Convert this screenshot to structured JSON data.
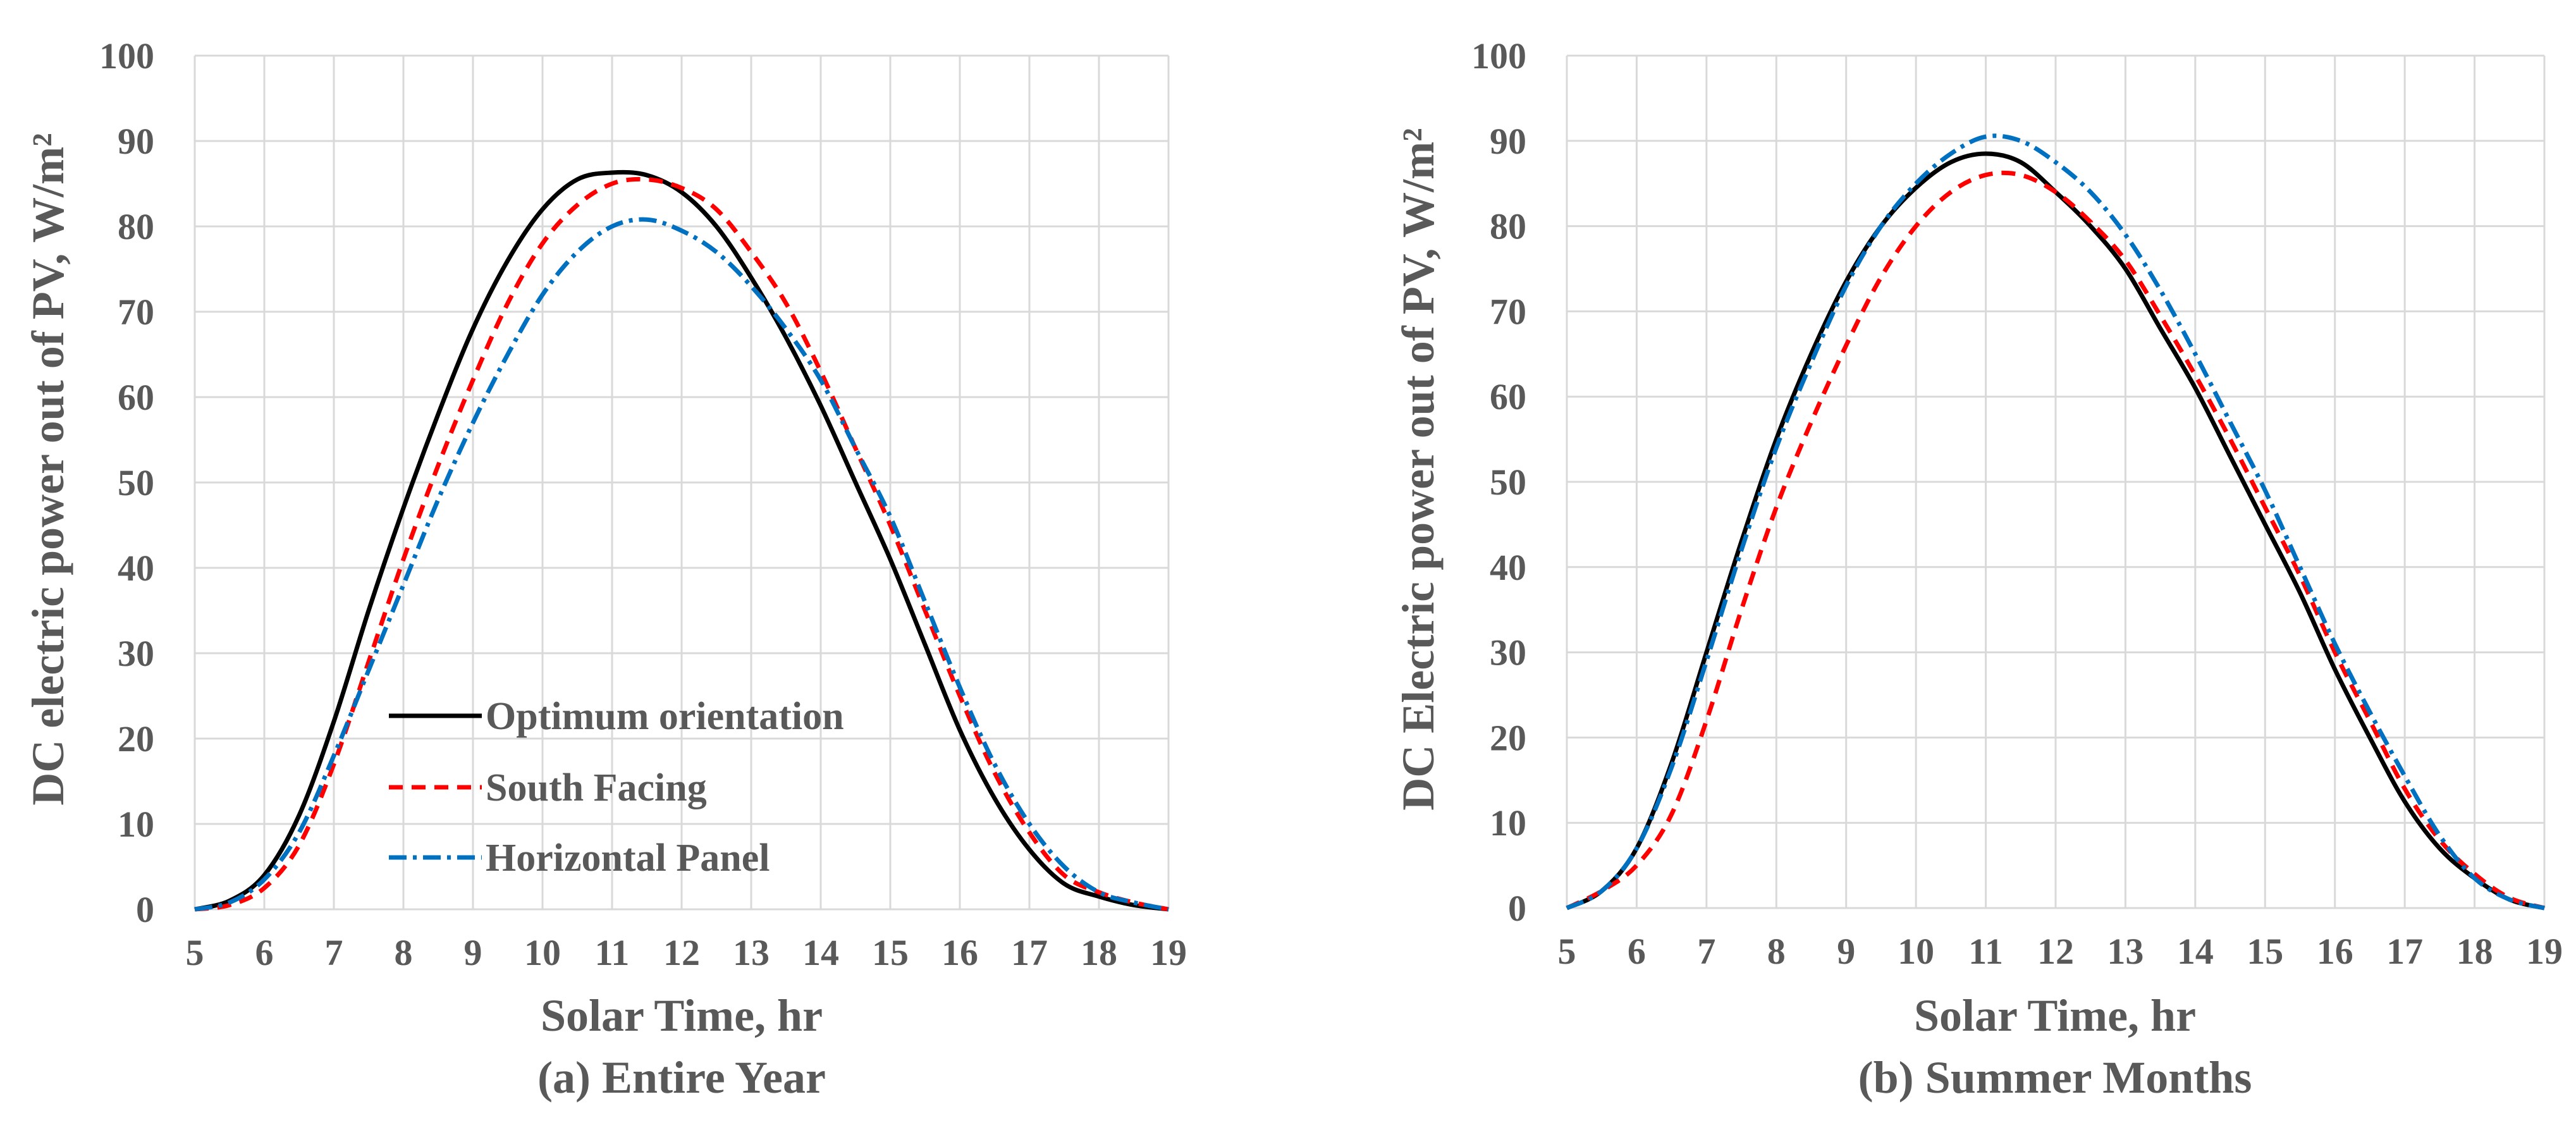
{
  "chart_data": [
    {
      "type": "line",
      "caption": "(a) Entire Year",
      "xlabel": "Solar Time, hr",
      "ylabel": "DC electric power out of PV, W/m²",
      "xlim": [
        5,
        19
      ],
      "ylim": [
        0,
        100
      ],
      "xticks": [
        5,
        6,
        7,
        8,
        9,
        10,
        11,
        12,
        13,
        14,
        15,
        16,
        17,
        18,
        19
      ],
      "yticks": [
        0,
        10,
        20,
        30,
        40,
        50,
        60,
        70,
        80,
        90,
        100
      ],
      "grid": true,
      "legend": "lower-left inside",
      "series": [
        {
          "name": "Optimum orientation",
          "color": "#000000",
          "dash": "solid",
          "x": [
            5,
            5.5,
            6,
            6.5,
            7,
            7.5,
            8,
            8.5,
            9,
            9.5,
            10,
            10.5,
            11,
            11.5,
            12,
            12.5,
            13,
            13.5,
            14,
            14.5,
            15,
            15.5,
            16,
            16.5,
            17,
            17.5,
            18,
            18.5,
            19
          ],
          "y": [
            0,
            1,
            4,
            11,
            22,
            35,
            47,
            58,
            68,
            76,
            82,
            85.5,
            86.3,
            86,
            84,
            80,
            74,
            67,
            59,
            50,
            41,
            31,
            21,
            13,
            7,
            3,
            1.5,
            0.5,
            0
          ]
        },
        {
          "name": "South Facing",
          "color": "#ff0000",
          "dash": "dashed",
          "x": [
            5,
            5.5,
            6,
            6.5,
            7,
            7.5,
            8,
            8.5,
            9,
            9.5,
            10,
            10.5,
            11,
            11.5,
            12,
            12.5,
            13,
            13.5,
            14,
            14.5,
            15,
            15.5,
            16,
            16.5,
            17,
            17.5,
            18,
            18.5,
            19
          ],
          "y": [
            0,
            0.5,
            2.5,
            7.5,
            17,
            29,
            41,
            52,
            62,
            71,
            78,
            82.5,
            85,
            85.5,
            84.5,
            82,
            77,
            71,
            63,
            54,
            45,
            35,
            25,
            16,
            9,
            4,
            2,
            0.8,
            0
          ]
        },
        {
          "name": "Horizontal Panel",
          "color": "#0070c0",
          "dash": "dashdot",
          "x": [
            5,
            5.5,
            6,
            6.5,
            7,
            7.5,
            8,
            8.5,
            9,
            9.5,
            10,
            10.5,
            11,
            11.5,
            12,
            12.5,
            13,
            13.5,
            14,
            14.5,
            15,
            15.5,
            16,
            16.5,
            17,
            17.5,
            18,
            18.5,
            19
          ],
          "y": [
            0,
            0.8,
            3.5,
            9,
            18,
            28,
            38,
            48,
            57,
            65,
            72,
            77,
            80,
            80.8,
            79.5,
            77,
            73,
            68,
            62,
            54,
            46,
            36,
            26,
            17,
            10,
            5,
            2,
            0.8,
            0
          ]
        }
      ]
    },
    {
      "type": "line",
      "caption": "(b) Summer Months",
      "xlabel": "Solar Time, hr",
      "ylabel": "DC Electric power out of PV, W/m²",
      "xlim": [
        5,
        19
      ],
      "ylim": [
        0,
        100
      ],
      "xticks": [
        5,
        6,
        7,
        8,
        9,
        10,
        11,
        12,
        13,
        14,
        15,
        16,
        17,
        18,
        19
      ],
      "yticks": [
        0,
        10,
        20,
        30,
        40,
        50,
        60,
        70,
        80,
        90,
        100
      ],
      "grid": true,
      "legend": "none",
      "series": [
        {
          "name": "Optimum orientation",
          "color": "#000000",
          "dash": "solid",
          "x": [
            5,
            5.5,
            6,
            6.5,
            7,
            7.5,
            8,
            8.5,
            9,
            9.5,
            10,
            10.5,
            11,
            11.5,
            12,
            12.5,
            13,
            13.5,
            14,
            14.5,
            15,
            15.5,
            16,
            16.5,
            17,
            17.5,
            18,
            18.5,
            19
          ],
          "y": [
            0,
            2,
            7,
            17,
            30,
            43,
            55,
            65,
            73.5,
            80,
            84.5,
            87.5,
            88.5,
            87.5,
            84,
            80,
            75,
            68,
            61,
            53,
            45,
            37,
            28,
            20,
            12.5,
            7,
            3.5,
            1,
            0
          ]
        },
        {
          "name": "South Facing",
          "color": "#ff0000",
          "dash": "dashed",
          "x": [
            5,
            5.5,
            6,
            6.5,
            7,
            7.5,
            8,
            8.5,
            9,
            9.5,
            10,
            10.5,
            11,
            11.5,
            12,
            12.5,
            13,
            13.5,
            14,
            14.5,
            15,
            15.5,
            16,
            16.5,
            17,
            17.5,
            18,
            18.5,
            19
          ],
          "y": [
            0,
            2,
            5,
            11,
            22,
            35,
            47,
            57,
            66,
            74,
            80,
            84,
            86,
            86,
            84,
            80.5,
            76,
            69.5,
            62.5,
            55,
            47,
            39,
            30,
            22,
            14,
            8,
            4,
            1.2,
            0
          ]
        },
        {
          "name": "Horizontal Panel",
          "color": "#0070c0",
          "dash": "dashdot",
          "x": [
            5,
            5.5,
            6,
            6.5,
            7,
            7.5,
            8,
            8.5,
            9,
            9.5,
            10,
            10.5,
            11,
            11.5,
            12,
            12.5,
            13,
            13.5,
            14,
            14.5,
            15,
            15.5,
            16,
            16.5,
            17,
            17.5,
            18,
            18.5,
            19
          ],
          "y": [
            0,
            2,
            7,
            16.5,
            29,
            42,
            54,
            64,
            73,
            80,
            85,
            88.5,
            90.5,
            90,
            87.5,
            84,
            79,
            72.5,
            65,
            57,
            49,
            40,
            31,
            23,
            15.5,
            8.5,
            3.5,
            1,
            0
          ]
        }
      ]
    }
  ]
}
